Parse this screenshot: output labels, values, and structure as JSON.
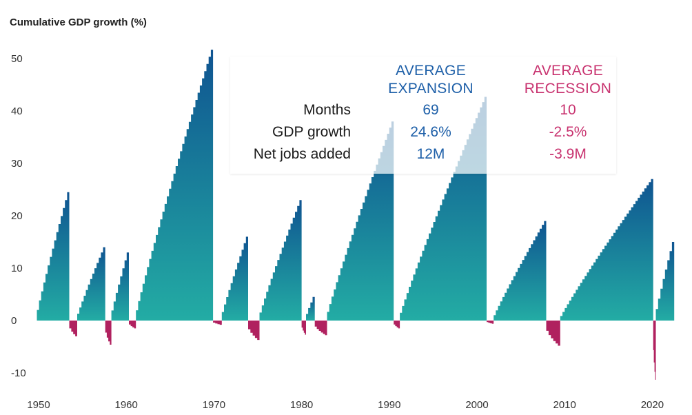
{
  "chart_data": {
    "type": "area",
    "title": "Cumulative GDP growth (%)",
    "xlabel": "",
    "ylabel": "Cumulative GDP growth (%)",
    "xlim": [
      1949.5,
      2023
    ],
    "ylim": [
      -12,
      55
    ],
    "xticks": [
      "1950",
      "1960",
      "1970",
      "1980",
      "1990",
      "2000",
      "2010",
      "2020"
    ],
    "yticks": [
      "50",
      "40",
      "30",
      "20",
      "10",
      "0",
      "-10"
    ],
    "grid": false,
    "colors": {
      "expansion_top": "#0f5491",
      "expansion_bottom": "#23aca4",
      "recession": "#b0215f",
      "expansion_text": "#1d5fa8",
      "recession_text": "#c8326f"
    },
    "series": [
      {
        "name": "Expansion",
        "kind": "expansion",
        "periods": [
          {
            "start": 1949.8,
            "end": 1953.5,
            "peak": 24.5
          },
          {
            "start": 1954.4,
            "end": 1957.6,
            "peak": 14.0
          },
          {
            "start": 1958.3,
            "end": 1960.3,
            "peak": 13.0
          },
          {
            "start": 1961.1,
            "end": 1969.9,
            "peak": 51.7
          },
          {
            "start": 1970.9,
            "end": 1973.9,
            "peak": 16.0
          },
          {
            "start": 1975.2,
            "end": 1980.0,
            "peak": 23.0
          },
          {
            "start": 1980.5,
            "end": 1981.5,
            "peak": 4.5
          },
          {
            "start": 1982.9,
            "end": 1990.5,
            "peak": 38.0
          },
          {
            "start": 1991.2,
            "end": 2001.1,
            "peak": 42.7
          },
          {
            "start": 2001.9,
            "end": 2007.9,
            "peak": 19.0
          },
          {
            "start": 2009.5,
            "end": 2020.1,
            "peak": 27.0
          },
          {
            "start": 2020.4,
            "end": 2022.5,
            "peak": 15.0
          }
        ]
      },
      {
        "name": "Recession",
        "kind": "recession",
        "periods": [
          {
            "start": 1953.5,
            "end": 1954.4,
            "trough": -3.0
          },
          {
            "start": 1957.6,
            "end": 1958.3,
            "trough": -4.6
          },
          {
            "start": 1960.3,
            "end": 1961.1,
            "trough": -1.5
          },
          {
            "start": 1969.9,
            "end": 1970.9,
            "trough": -0.8
          },
          {
            "start": 1973.9,
            "end": 1975.2,
            "trough": -3.7
          },
          {
            "start": 1980.0,
            "end": 1980.5,
            "trough": -2.7
          },
          {
            "start": 1981.5,
            "end": 1982.9,
            "trough": -2.8
          },
          {
            "start": 1990.5,
            "end": 1991.2,
            "trough": -1.5
          },
          {
            "start": 2001.1,
            "end": 2001.9,
            "trough": -0.6
          },
          {
            "start": 2007.9,
            "end": 2009.5,
            "trough": -4.8
          },
          {
            "start": 2020.1,
            "end": 2020.4,
            "trough": -11.3
          }
        ]
      }
    ]
  },
  "stats": {
    "expansion_header": [
      "AVERAGE",
      "EXPANSION"
    ],
    "recession_header": [
      "AVERAGE",
      "RECESSION"
    ],
    "rows": [
      {
        "label": "Months",
        "expansion": "69",
        "recession": "10"
      },
      {
        "label": "GDP growth",
        "expansion": "24.6%",
        "recession": "-2.5%"
      },
      {
        "label": "Net jobs added",
        "expansion": "12M",
        "recession": "-3.9M"
      }
    ]
  }
}
